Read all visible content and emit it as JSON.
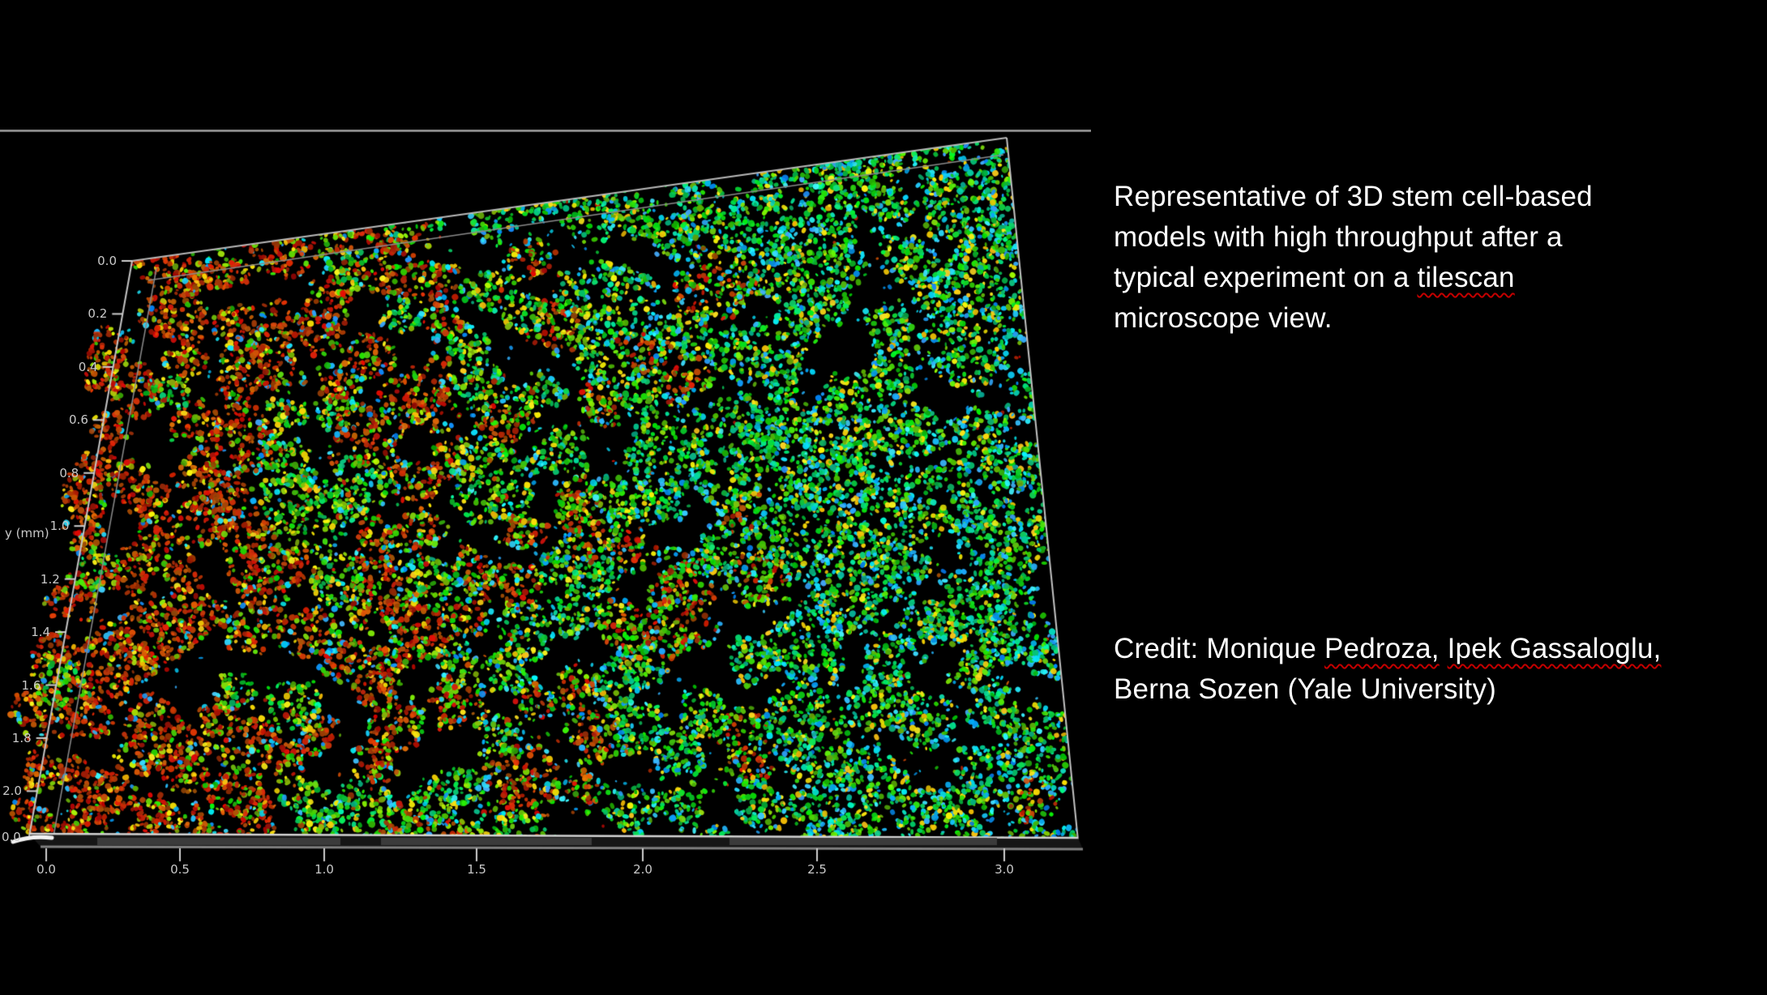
{
  "slide": {
    "background_color": "#000000",
    "text_color": "#ffffff",
    "misspell_underline_color": "#c40000"
  },
  "figure": {
    "name": "3D tilescan microscopy render of stem cell spheroids",
    "top_border_color": "#8a8a8a",
    "wireframe_color": "#c4c4c4",
    "y_axis_label": "y (mm)",
    "y_ticks": [
      "0.0",
      "0.2",
      "0.4",
      "0.6",
      "0.8",
      "1.0",
      "1.2",
      "1.4",
      "1.6",
      "1.8",
      "2.0"
    ],
    "x_ticks": [
      "0.0",
      "0.5",
      "1.0",
      "1.5",
      "2.0",
      "2.5",
      "3.0"
    ],
    "origin_label": "0.0",
    "palette": {
      "red": "#c42400",
      "orange": "#e07000",
      "yellow": "#e8c400",
      "green": "#2eb83a",
      "cyan": "#00b6dc",
      "blue": "#2070e8"
    }
  },
  "caption": {
    "lines": [
      {
        "parts": [
          {
            "text": "Representative of 3D stem cell-based"
          }
        ]
      },
      {
        "parts": [
          {
            "text": "models with high throughput after a"
          }
        ]
      },
      {
        "parts": [
          {
            "text": "typical experiment on a "
          },
          {
            "text": "tilescan",
            "misspelled": true
          }
        ]
      },
      {
        "parts": [
          {
            "text": "microscope view."
          }
        ]
      }
    ]
  },
  "credit": {
    "lines": [
      {
        "parts": [
          {
            "text": "Credit: Monique "
          },
          {
            "text": "Pedroza,",
            "misspelled": true
          },
          {
            "text": " "
          },
          {
            "text": "Ipek Gassaloglu,",
            "misspelled": true
          }
        ]
      },
      {
        "parts": [
          {
            "text": "Berna Sozen (Yale University)"
          }
        ]
      }
    ]
  }
}
